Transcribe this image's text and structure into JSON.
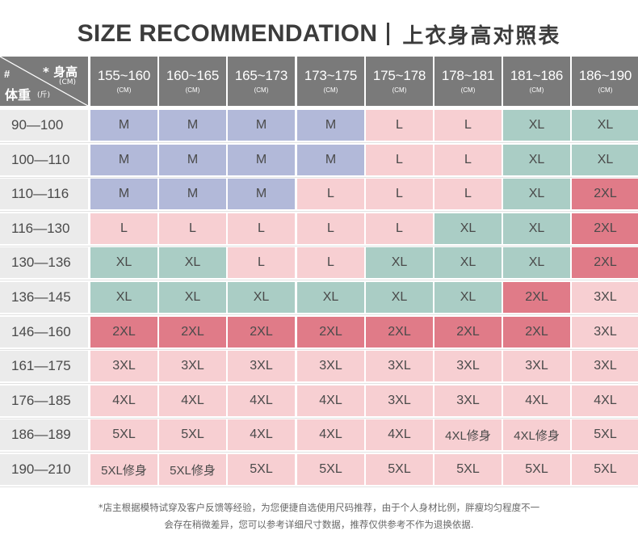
{
  "title": {
    "en": "SIZE RECOMMENDATION",
    "cn": "上衣身高对照表"
  },
  "corner": {
    "hash": "#",
    "height_label": "* 身高",
    "height_unit": "(CM)",
    "weight_label": "体重",
    "weight_unit": "(斤)"
  },
  "height_unit": "(CM)",
  "heights": [
    "155~160",
    "160~165",
    "165~173",
    "173~175",
    "175~178",
    "178~181",
    "181~186",
    "186~190"
  ],
  "weights": [
    "90—100",
    "100—110",
    "110—116",
    "116—130",
    "130—136",
    "136—145",
    "146—160",
    "161—175",
    "176—185",
    "186—189",
    "190—210"
  ],
  "sizes": [
    [
      "M",
      "M",
      "M",
      "M",
      "L",
      "L",
      "XL",
      "XL"
    ],
    [
      "M",
      "M",
      "M",
      "M",
      "L",
      "L",
      "XL",
      "XL"
    ],
    [
      "M",
      "M",
      "M",
      "L",
      "L",
      "L",
      "XL",
      "2XL"
    ],
    [
      "L",
      "L",
      "L",
      "L",
      "L",
      "XL",
      "XL",
      "2XL"
    ],
    [
      "XL",
      "XL",
      "L",
      "L",
      "XL",
      "XL",
      "XL",
      "2XL"
    ],
    [
      "XL",
      "XL",
      "XL",
      "XL",
      "XL",
      "XL",
      "2XL",
      "3XL"
    ],
    [
      "2XL",
      "2XL",
      "2XL",
      "2XL",
      "2XL",
      "2XL",
      "2XL",
      "3XL"
    ],
    [
      "3XL",
      "3XL",
      "3XL",
      "3XL",
      "3XL",
      "3XL",
      "3XL",
      "3XL"
    ],
    [
      "4XL",
      "4XL",
      "4XL",
      "4XL",
      "3XL",
      "3XL",
      "4XL",
      "4XL"
    ],
    [
      "5XL",
      "5XL",
      "4XL",
      "4XL",
      "4XL",
      "4XL修身",
      "4XL修身",
      "5XL"
    ],
    [
      "5XL修身",
      "5XL修身",
      "5XL",
      "5XL",
      "5XL",
      "5XL",
      "5XL",
      "5XL"
    ]
  ],
  "colors": {
    "blue": "#b2b9d9",
    "pink": "#f7cfd2",
    "green": "#aacdc5",
    "red": "#e07b88",
    "header": "#7a7a7a",
    "row_label": "#ebebeb"
  },
  "note": {
    "line1": "*店主根据模特试穿及客户反馈等经验，为您便捷自选使用尺码推荐，由于个人身材比例，胖瘦均匀程度不一",
    "line2": "会存在稍微差异，您可以参考详细尺寸数据，推荐仅供参考不作为退换依据."
  }
}
